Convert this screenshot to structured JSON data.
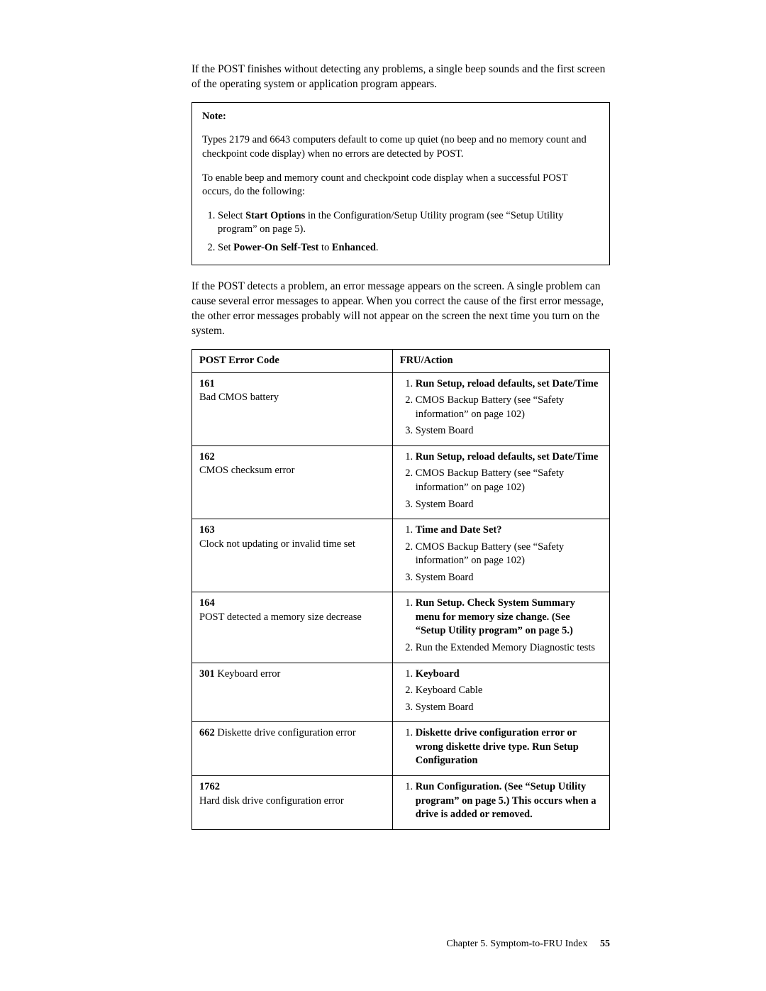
{
  "intro": {
    "p1": "If the POST finishes without detecting any problems, a single beep sounds and the first screen of the operating system or application program appears.",
    "p2": "If the POST detects a problem, an error message appears on the screen. A single problem can cause several error messages to appear. When you correct the cause of the first error message, the other error messages probably will not appear on the screen the next time you turn on the system."
  },
  "note": {
    "title": "Note:",
    "p1": "Types 2179 and 6643 computers default to come up quiet (no beep and no memory count and checkpoint code display) when no errors are detected by POST.",
    "p2": "To enable beep and memory count and checkpoint code display when a successful POST occurs, do the following:",
    "li1a": "Select ",
    "li1b": "Start Options",
    "li1c": " in the Configuration/Setup Utility program (see “Setup Utility program” on page 5).",
    "li2a": "Set ",
    "li2b": "Power-On Self-Test",
    "li2c": " to ",
    "li2d": "Enhanced",
    "li2e": "."
  },
  "table": {
    "h1": "POST Error Code",
    "h2": "FRU/Action",
    "rows": [
      {
        "code": "161",
        "desc": "Bad CMOS battery",
        "actions": [
          {
            "bold": true,
            "text": "Run Setup, reload defaults, set Date/Time"
          },
          {
            "bold": false,
            "text": "CMOS Backup Battery (see “Safety information” on page 102)"
          },
          {
            "bold": false,
            "text": "System Board"
          }
        ]
      },
      {
        "code": "162",
        "desc": "CMOS checksum error",
        "actions": [
          {
            "bold": true,
            "text": "Run Setup, reload defaults, set Date/Time"
          },
          {
            "bold": false,
            "text": "CMOS Backup Battery (see “Safety information” on page 102)"
          },
          {
            "bold": false,
            "text": "System Board"
          }
        ]
      },
      {
        "code": "163",
        "desc": "Clock not updating or invalid time set",
        "actions": [
          {
            "bold": true,
            "text": "Time and Date Set?"
          },
          {
            "bold": false,
            "text": "CMOS Backup Battery (see “Safety information” on page 102)"
          },
          {
            "bold": false,
            "text": "System Board"
          }
        ]
      },
      {
        "code": "164",
        "desc": "POST detected a memory size decrease",
        "actions": [
          {
            "bold": true,
            "text": "Run Setup. Check System Summary menu for memory size change. (See “Setup Utility program” on page 5.)"
          },
          {
            "bold": false,
            "text": "Run the Extended Memory Diagnostic tests"
          }
        ]
      },
      {
        "code": "301",
        "code_inline": true,
        "desc": "Keyboard error",
        "actions": [
          {
            "bold": true,
            "text": "Keyboard"
          },
          {
            "bold": false,
            "text": "Keyboard Cable"
          },
          {
            "bold": false,
            "text": "System Board"
          }
        ]
      },
      {
        "code": "662",
        "code_inline": true,
        "desc": "Diskette drive configuration error",
        "actions": [
          {
            "bold": true,
            "text": "Diskette drive configuration error or wrong diskette drive type. Run Setup Configuration"
          }
        ]
      },
      {
        "code": "1762",
        "desc": "Hard disk drive configuration error",
        "actions": [
          {
            "bold": true,
            "text": "Run Configuration. (See “Setup Utility program” on page 5.) This occurs when a drive is added or removed."
          }
        ]
      }
    ]
  },
  "footer": {
    "chapter": "Chapter 5. Symptom-to-FRU Index",
    "page": "55"
  }
}
